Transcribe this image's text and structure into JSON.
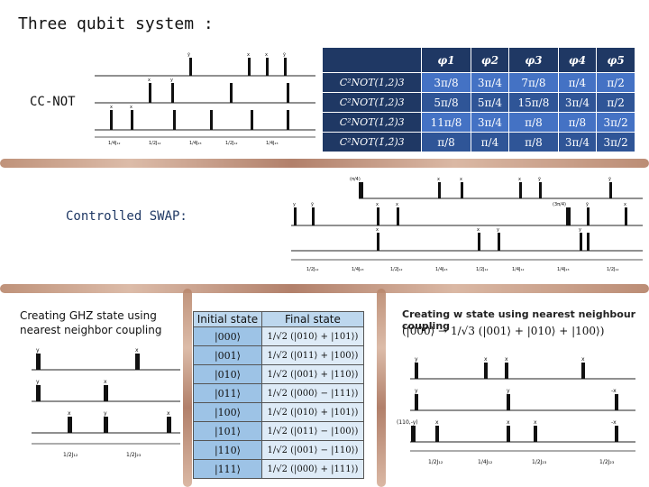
{
  "header": {
    "title": "Three qubit system :"
  },
  "ccnot": {
    "label": "CC-NOT",
    "headers": [
      "",
      "φ1",
      "φ2",
      "φ3",
      "φ4",
      "φ5"
    ],
    "rows": [
      {
        "name": "C²NOT(1,2)3",
        "values": [
          "3π/8",
          "3π/4",
          "7π/8",
          "π/4",
          "π/2"
        ]
      },
      {
        "name": "C²NOT(1̄,2)3",
        "values": [
          "5π/8",
          "5π/4",
          "15π/8",
          "3π/4",
          "π/2"
        ]
      },
      {
        "name": "C²NOT(1,2̄)3",
        "values": [
          "11π/8",
          "3π/4",
          "π/8",
          "π/8",
          "3π/2"
        ]
      },
      {
        "name": "C²NOT(1̄,2̄)3",
        "values": [
          "π/8",
          "π/4",
          "π/8",
          "3π/4",
          "3π/2"
        ]
      }
    ]
  },
  "cswap": {
    "label": "Controlled SWAP:"
  },
  "ghz": {
    "label": "Creating GHZ state using nearest neighbor coupling",
    "table_headers": {
      "initial": "Initial state",
      "final": "Final state"
    },
    "rows": [
      {
        "initial": "|000⟩",
        "final": "1/√2 (|010⟩ + |101⟩)"
      },
      {
        "initial": "|001⟩",
        "final": "1/√2 (|011⟩ + |100⟩)"
      },
      {
        "initial": "|010⟩",
        "final": "1/√2 (|001⟩ + |110⟩)"
      },
      {
        "initial": "|011⟩",
        "final": "1/√2 (|000⟩ − |111⟩)"
      },
      {
        "initial": "|100⟩",
        "final": "1/√2 (|010⟩ + |101⟩)"
      },
      {
        "initial": "|101⟩",
        "final": "1/√2 (|011⟩ − |100⟩)"
      },
      {
        "initial": "|110⟩",
        "final": "1/√2 (|001⟩ − |110⟩)"
      },
      {
        "initial": "|111⟩",
        "final": "1/√2 (|000⟩ + |111⟩)"
      }
    ]
  },
  "wstate": {
    "label": "Creating w state using nearest neighbour coupling",
    "equation": "(|000⟩ → 1/√3 (|001⟩ + |010⟩ + |100⟩)"
  },
  "pulse_labels": {
    "x": "x",
    "y": "y",
    "ybar": "ȳ",
    "minus_x": "-x",
    "cswap_phase_left": "(π/4)",
    "cswap_phase_right": "(3π/4)",
    "w_phase": "(110,-y)",
    "t1": "1/4J₁₂",
    "t2": "1/2J₂₃",
    "t3": "1/2J₁₂",
    "t4": "1/4J₂₃"
  }
}
